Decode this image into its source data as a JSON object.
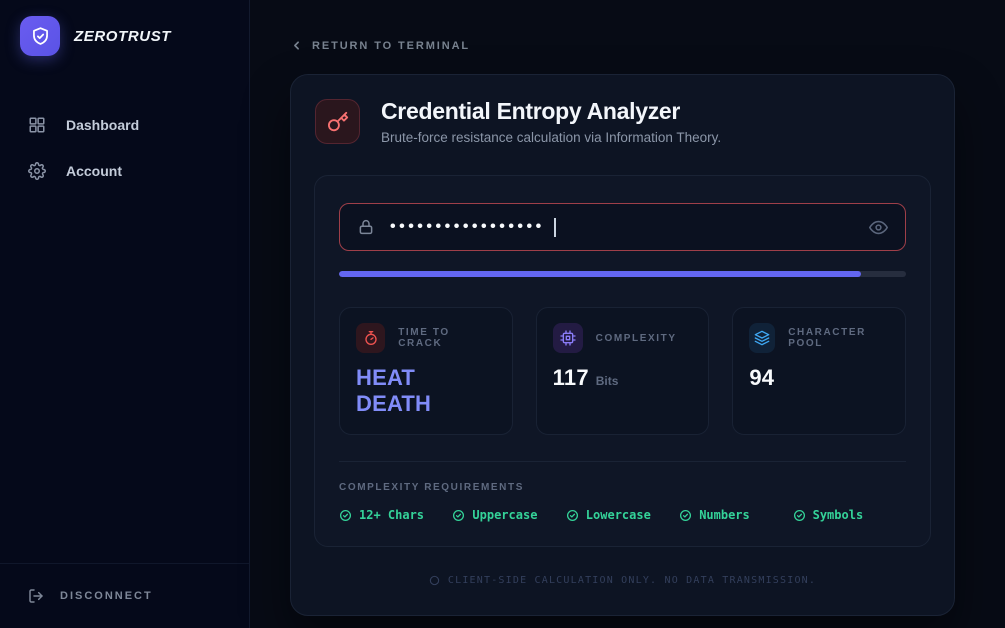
{
  "brand": {
    "name": "ZEROTRUST",
    "icon": "shield-check-icon"
  },
  "sidebar": {
    "items": [
      {
        "label": "Dashboard",
        "icon": "dashboard-grid-icon"
      },
      {
        "label": "Account",
        "icon": "gear-icon"
      }
    ],
    "disconnect": {
      "label": "DISCONNECT",
      "icon": "logout-icon"
    }
  },
  "topbar": {
    "back_label": "RETURN TO TERMINAL",
    "back_icon": "chevron-left-icon"
  },
  "analyzer": {
    "title": "Credential Entropy Analyzer",
    "subtitle": "Brute-force resistance calculation via Information Theory.",
    "icon": "key-icon",
    "password": {
      "masked_value": "•••••••••••••••••",
      "left_icon": "lock-icon",
      "right_icon": "eye-icon"
    },
    "strength": {
      "percent": 92,
      "fill_color": "#6366f1"
    },
    "stats": [
      {
        "label": "TIME TO CRACK",
        "value": "HEAT DEATH",
        "icon": "stopwatch-icon",
        "value_color": "#818cf8"
      },
      {
        "label": "COMPLEXITY",
        "value": "117",
        "unit": "Bits",
        "icon": "cpu-icon",
        "value_color": "#f8fafc"
      },
      {
        "label": "CHARACTER POOL",
        "value": "94",
        "icon": "layers-icon",
        "value_color": "#f8fafc"
      }
    ],
    "requirements": {
      "label": "COMPLEXITY REQUIREMENTS",
      "check_color": "#34d399",
      "items": [
        "12+ Chars",
        "Uppercase",
        "Lowercase",
        "Numbers",
        "Symbols"
      ]
    },
    "footer_note": "CLIENT-SIDE CALCULATION ONLY. NO DATA TRANSMISSION."
  },
  "colors": {
    "accent_purple": "#6366f1",
    "value_purple": "#818cf8",
    "success_green": "#34d399",
    "danger_red": "#f87171",
    "input_border_red": "#9f3f49",
    "card_bg": "#0d1423",
    "sidebar_bg": "#05091a"
  }
}
